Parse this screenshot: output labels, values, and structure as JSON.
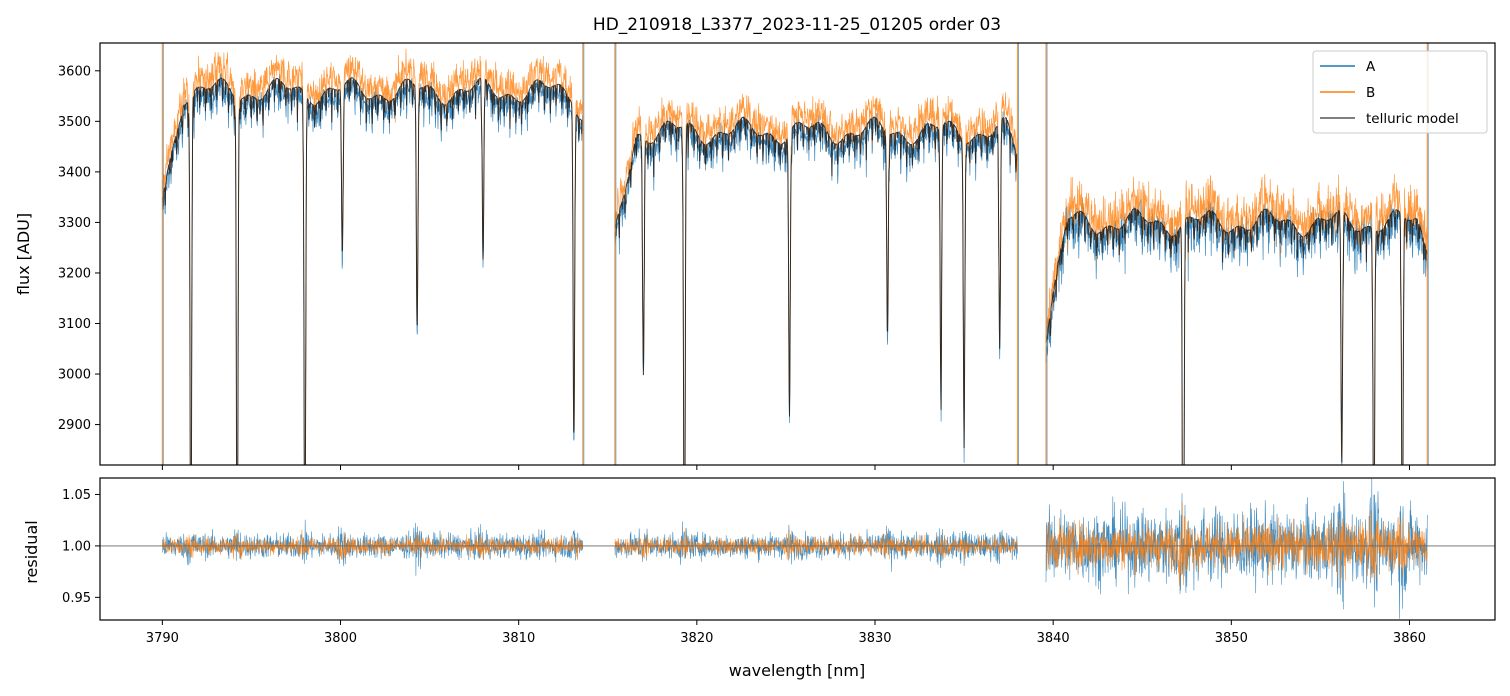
{
  "chart_data": [
    {
      "type": "line",
      "panel": "flux",
      "title": "HD_210918_L3377_2023-11-25_01205  order 03",
      "xlabel": "",
      "ylabel": "flux [ADU]",
      "xlim": [
        3786.5,
        3864.8
      ],
      "ylim": [
        2820,
        3655
      ],
      "x_ticks": [
        3790,
        3800,
        3810,
        3820,
        3830,
        3840,
        3850,
        3860
      ],
      "y_ticks": [
        2900,
        3000,
        3100,
        3200,
        3300,
        3400,
        3500,
        3600
      ],
      "legend": {
        "placement": "top-right",
        "entries": [
          "A",
          "B",
          "telluric model"
        ]
      },
      "colors": {
        "A": "#1f77b4",
        "B": "#ff7f0e",
        "telluric model": "#000000"
      },
      "segments": [
        {
          "x_start": 3790.0,
          "x_end": 3813.6,
          "continuum_model": 3560
        },
        {
          "x_start": 3815.4,
          "x_end": 3838.0,
          "continuum_model": 3480
        },
        {
          "x_start": 3839.6,
          "x_end": 3861.0,
          "continuum_model": 3300
        }
      ],
      "absorption_lines": [
        {
          "x": 3791.6,
          "depth": 1000
        },
        {
          "x": 3794.2,
          "depth": 1000
        },
        {
          "x": 3798.0,
          "depth": 1000
        },
        {
          "x": 3800.1,
          "depth": 330
        },
        {
          "x": 3804.3,
          "depth": 480
        },
        {
          "x": 3808.0,
          "depth": 360
        },
        {
          "x": 3813.1,
          "depth": 650
        },
        {
          "x": 3817.0,
          "depth": 470
        },
        {
          "x": 3819.3,
          "depth": 1000
        },
        {
          "x": 3825.2,
          "depth": 560
        },
        {
          "x": 3830.7,
          "depth": 400
        },
        {
          "x": 3833.7,
          "depth": 520
        },
        {
          "x": 3835.0,
          "depth": 560
        },
        {
          "x": 3837.0,
          "depth": 450
        },
        {
          "x": 3847.3,
          "depth": 1000
        },
        {
          "x": 3856.2,
          "depth": 500
        },
        {
          "x": 3858.0,
          "depth": 700
        },
        {
          "x": 3859.6,
          "depth": 700
        }
      ]
    },
    {
      "type": "line",
      "panel": "residual",
      "xlabel": "wavelength [nm]",
      "ylabel": "residual",
      "xlim": [
        3786.5,
        3864.8
      ],
      "ylim": [
        0.928,
        1.066
      ],
      "x_ticks": [
        3790,
        3800,
        3810,
        3820,
        3830,
        3840,
        3850,
        3860
      ],
      "x_tick_labels": [
        "3790",
        "3800",
        "3810",
        "3820",
        "3830",
        "3840",
        "3850",
        "3860"
      ],
      "y_ticks": [
        0.95,
        1.0,
        1.05
      ],
      "y_tick_labels": [
        "0.95",
        "1.00",
        "1.05"
      ],
      "reference_line": 1.0,
      "series": [
        {
          "name": "A",
          "color": "#1f77b4",
          "noise": [
            0.012,
            0.012,
            0.035
          ]
        },
        {
          "name": "B",
          "color": "#ff7f0e",
          "noise": [
            0.008,
            0.008,
            0.022
          ]
        }
      ]
    }
  ]
}
